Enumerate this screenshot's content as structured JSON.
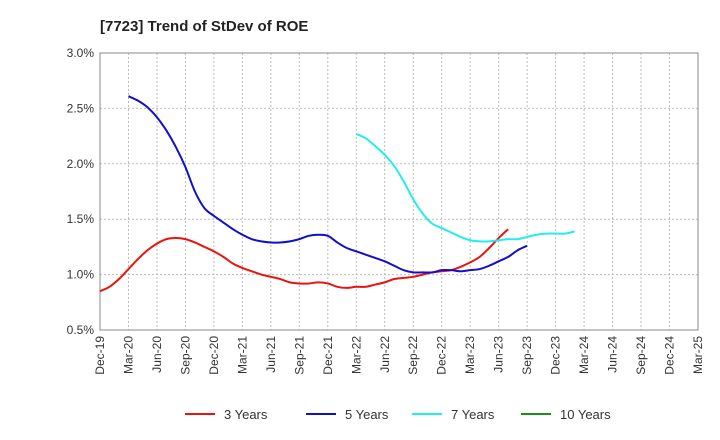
{
  "chart_data": {
    "type": "line",
    "title": "[7723]  Trend of StDev of ROE",
    "xlabel": "",
    "ylabel": "",
    "ylim": [
      0.5,
      3.0
    ],
    "y_ticks": [
      {
        "value": 3.0,
        "label": "3.0%"
      },
      {
        "value": 2.5,
        "label": "2.5%"
      },
      {
        "value": 2.0,
        "label": "2.0%"
      },
      {
        "value": 1.5,
        "label": "1.5%"
      },
      {
        "value": 1.0,
        "label": "1.0%"
      },
      {
        "value": 0.5,
        "label": "0.5%"
      }
    ],
    "x_ticks": [
      "Dec-19",
      "Mar-20",
      "Jun-20",
      "Sep-20",
      "Dec-20",
      "Mar-21",
      "Jun-21",
      "Sep-21",
      "Dec-21",
      "Mar-22",
      "Jun-22",
      "Sep-22",
      "Dec-22",
      "Mar-23",
      "Jun-23",
      "Sep-23",
      "Dec-23",
      "Mar-24",
      "Jun-24",
      "Sep-24",
      "Dec-24",
      "Mar-25"
    ],
    "grid": true,
    "legend_position": "bottom",
    "series": [
      {
        "name": "3 Years",
        "color": "#e8140f",
        "start_index": 0,
        "values": [
          0.85,
          0.89,
          0.96,
          1.05,
          1.14,
          1.22,
          1.28,
          1.32,
          1.33,
          1.32,
          1.29,
          1.25,
          1.21,
          1.16,
          1.1,
          1.06,
          1.03,
          1.0,
          0.98,
          0.96,
          0.93,
          0.92,
          0.92,
          0.93,
          0.92,
          0.89,
          0.88,
          0.89,
          0.89,
          0.91,
          0.93,
          0.96,
          0.97,
          0.98,
          1.0,
          1.02,
          1.03,
          1.04,
          1.07,
          1.11,
          1.16,
          1.24,
          1.33,
          1.41
        ]
      },
      {
        "name": "5 Years",
        "color": "#1010c8",
        "start_index": 3,
        "values": [
          2.61,
          2.57,
          2.51,
          2.42,
          2.3,
          2.15,
          1.97,
          1.75,
          1.6,
          1.53,
          1.47,
          1.41,
          1.36,
          1.32,
          1.3,
          1.29,
          1.29,
          1.3,
          1.32,
          1.35,
          1.36,
          1.35,
          1.29,
          1.24,
          1.21,
          1.18,
          1.15,
          1.12,
          1.08,
          1.04,
          1.02,
          1.02,
          1.02,
          1.04,
          1.04,
          1.03,
          1.04,
          1.05,
          1.08,
          1.12,
          1.16,
          1.22,
          1.26
        ]
      },
      {
        "name": "7 Years",
        "color": "#22eeee",
        "start_index": 27,
        "values": [
          2.27,
          2.23,
          2.16,
          2.08,
          1.98,
          1.84,
          1.68,
          1.55,
          1.46,
          1.42,
          1.38,
          1.34,
          1.31,
          1.3,
          1.3,
          1.31,
          1.32,
          1.32,
          1.34,
          1.36,
          1.37,
          1.37,
          1.37,
          1.39
        ]
      },
      {
        "name": "10 Years",
        "color": "#1e8c1e",
        "start_index": 0,
        "values": []
      }
    ]
  }
}
